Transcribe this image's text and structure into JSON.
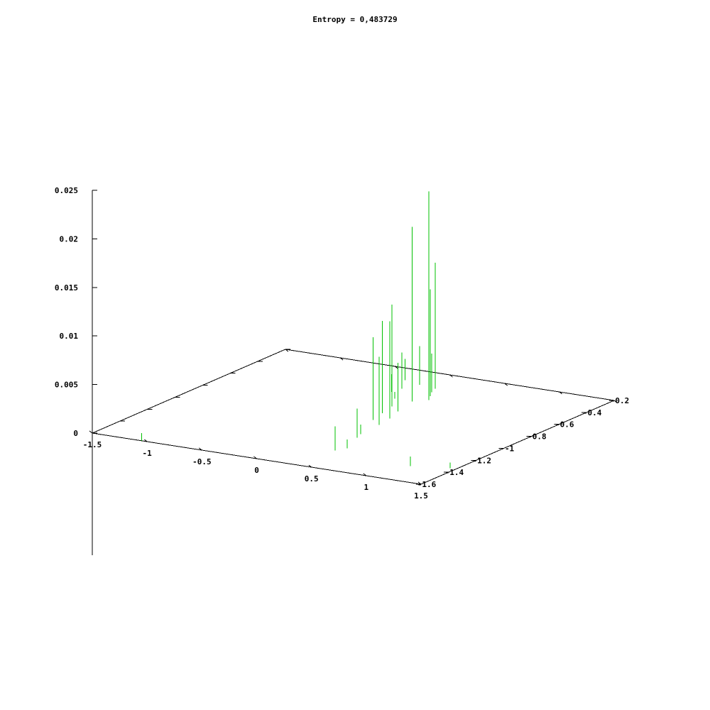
{
  "chart_data": {
    "type": "3d-impulse",
    "title": "Entropy = 0,483729",
    "x_ticks": [
      "-1.5",
      "-1",
      "-0.5",
      "0",
      "0.5",
      "1",
      "1.5"
    ],
    "y_ticks": [
      "-1.6",
      "-1.4",
      "-1.2",
      "-1",
      "-0.8",
      "-0.6",
      "-0.4",
      "-0.2"
    ],
    "z_ticks": [
      "0",
      "0.005",
      "0.01",
      "0.015",
      "0.02",
      "0.025"
    ],
    "xlim": [
      -1.5,
      1.5
    ],
    "ylim": [
      -1.6,
      -0.2
    ],
    "zlim": [
      0,
      0.025
    ],
    "series_color": "#00c000",
    "points": [
      {
        "x": -1.05,
        "y": -1.6,
        "z": 0.0008
      },
      {
        "x": -0.22,
        "y": -0.35,
        "z": 0.0022
      },
      {
        "x": -0.15,
        "y": -0.5,
        "z": 0.0035
      },
      {
        "x": -0.13,
        "y": -0.52,
        "z": 0.0018
      },
      {
        "x": -0.11,
        "y": -0.46,
        "z": 0.0037
      },
      {
        "x": -0.05,
        "y": -0.38,
        "z": 0.004
      },
      {
        "x": 0.0,
        "y": -0.6,
        "z": 0.0007
      },
      {
        "x": 0.1,
        "y": -0.7,
        "z": 0.0105
      },
      {
        "x": 0.12,
        "y": -0.4,
        "z": 0.013
      },
      {
        "x": 0.14,
        "y": -0.8,
        "z": 0.0095
      },
      {
        "x": 0.15,
        "y": -0.45,
        "z": 0.004
      },
      {
        "x": 0.16,
        "y": -0.6,
        "z": 0.018
      },
      {
        "x": 0.18,
        "y": -0.9,
        "z": 0.0085
      },
      {
        "x": 0.2,
        "y": -0.5,
        "z": 0.011
      },
      {
        "x": 0.22,
        "y": -0.75,
        "z": 0.005
      },
      {
        "x": 0.25,
        "y": -0.55,
        "z": 0.0215
      },
      {
        "x": 0.27,
        "y": -0.85,
        "z": 0.01
      },
      {
        "x": 0.3,
        "y": -0.95,
        "z": 0.007
      },
      {
        "x": 0.32,
        "y": -1.1,
        "z": 0.001
      },
      {
        "x": 0.35,
        "y": -1.15,
        "z": 0.003
      },
      {
        "x": 0.4,
        "y": -1.35,
        "z": 0.0025
      },
      {
        "x": 0.45,
        "y": -1.3,
        "z": 0.0009
      },
      {
        "x": 1.15,
        "y": -1.4,
        "z": 0.001
      },
      {
        "x": 1.45,
        "y": -1.35,
        "z": 0.0006
      }
    ]
  }
}
